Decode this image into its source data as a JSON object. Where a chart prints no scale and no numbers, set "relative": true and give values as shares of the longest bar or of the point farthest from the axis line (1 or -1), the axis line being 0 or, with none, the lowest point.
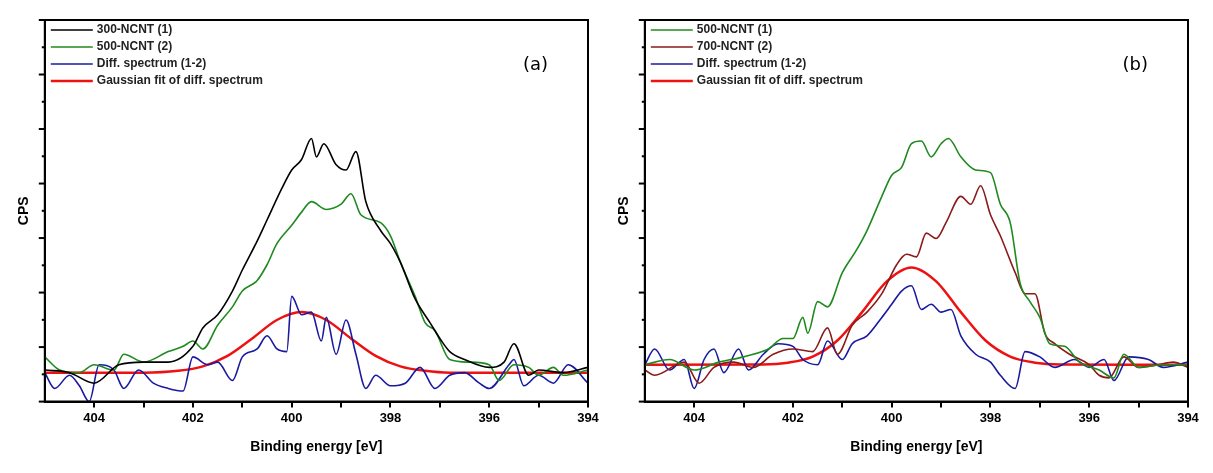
{
  "chart_data": [
    {
      "type": "line",
      "relative": true,
      "xlabel": "Binding energy [eV]",
      "ylabel": "CPS",
      "annotations": [
        "(a)"
      ],
      "legend": "top left",
      "marker": "none",
      "line_style": "solid",
      "grid": false,
      "tick_labels": "x",
      "xlim": [
        405,
        394
      ],
      "xticks": [
        404,
        {
          "value": 403,
          "label": null
        },
        402,
        {
          "value": 401,
          "label": null
        },
        400,
        {
          "value": 399,
          "label": null
        },
        398,
        {
          "value": 397,
          "label": null
        },
        396,
        {
          "value": 395,
          "label": null
        },
        394
      ],
      "series": [
        {
          "name": "300-NCNT (1)",
          "color": "#000000",
          "x": [
            405,
            404.5,
            404,
            403.5,
            403,
            402.5,
            402,
            401.8,
            401.5,
            401.2,
            401,
            400.7,
            400.5,
            400.2,
            400,
            399.8,
            399.6,
            399.5,
            399.35,
            399.1,
            398.9,
            398.7,
            398.5,
            398.2,
            398,
            397.8,
            397.5,
            397.2,
            397,
            396.8,
            396.5,
            396,
            395.7,
            395.5,
            395.2,
            395,
            394.5,
            394
          ],
          "values": [
            0.12,
            0.11,
            0.07,
            0.14,
            0.15,
            0.15,
            0.21,
            0.28,
            0.33,
            0.42,
            0.5,
            0.61,
            0.69,
            0.81,
            0.88,
            0.92,
            1.0,
            0.93,
            0.98,
            0.9,
            0.88,
            0.95,
            0.76,
            0.65,
            0.6,
            0.53,
            0.39,
            0.3,
            0.24,
            0.19,
            0.16,
            0.13,
            0.15,
            0.22,
            0.1,
            0.12,
            0.11,
            0.13
          ]
        },
        {
          "name": "500-NCNT (2)",
          "color": "#1f8a1f",
          "x": [
            405,
            404.7,
            404.3,
            404,
            403.6,
            403.4,
            403,
            402.5,
            402.2,
            402,
            401.8,
            401.5,
            401.2,
            401,
            400.7,
            400.5,
            400.3,
            400,
            399.8,
            399.6,
            399.3,
            399,
            398.8,
            398.6,
            398.2,
            398,
            397.8,
            397.5,
            397.3,
            397.1,
            396.8,
            396.4,
            396,
            395.8,
            395.5,
            395.2,
            395,
            394.7,
            394.5,
            394
          ],
          "values": [
            0.17,
            0.12,
            0.11,
            0.14,
            0.12,
            0.18,
            0.15,
            0.19,
            0.21,
            0.23,
            0.2,
            0.29,
            0.36,
            0.42,
            0.46,
            0.52,
            0.6,
            0.67,
            0.72,
            0.76,
            0.73,
            0.75,
            0.79,
            0.71,
            0.68,
            0.63,
            0.53,
            0.4,
            0.3,
            0.27,
            0.16,
            0.15,
            0.14,
            0.08,
            0.14,
            0.13,
            0.1,
            0.13,
            0.1,
            0.12
          ]
        },
        {
          "name": "Diff. spectrum (1-2)",
          "color": "#1a1aa0",
          "x": [
            405,
            404.8,
            404.5,
            404.3,
            404.1,
            403.9,
            403.6,
            403.4,
            403.1,
            402.8,
            402.5,
            402.2,
            402,
            401.7,
            401.5,
            401.2,
            401,
            400.7,
            400.5,
            400.3,
            400.1,
            400,
            399.8,
            399.6,
            399.4,
            399.3,
            399.1,
            398.9,
            398.7,
            398.5,
            398.3,
            398,
            397.7,
            397.4,
            397.1,
            396.8,
            396.5,
            396.2,
            396,
            395.6,
            395.5,
            395.3,
            395,
            394.7,
            394.4,
            394
          ],
          "values": [
            0.11,
            0.05,
            0.1,
            0.06,
            0.0,
            0.14,
            0.12,
            0.05,
            0.12,
            0.07,
            0.05,
            0.04,
            0.17,
            0.14,
            0.15,
            0.08,
            0.17,
            0.2,
            0.25,
            0.2,
            0.19,
            0.4,
            0.33,
            0.34,
            0.23,
            0.32,
            0.18,
            0.31,
            0.18,
            0.05,
            0.1,
            0.06,
            0.07,
            0.13,
            0.05,
            0.1,
            0.11,
            0.07,
            0.05,
            0.14,
            0.16,
            0.06,
            0.1,
            0.07,
            0.14,
            0.07
          ]
        },
        {
          "name": "Gaussian fit of diff. spectrum",
          "color": "#ee1111",
          "x": [
            405,
            403,
            402.3,
            401.8,
            401.3,
            400.8,
            400.3,
            399.8,
            399.3,
            398.8,
            398.3,
            397.8,
            397.3,
            396.8,
            394
          ],
          "values": [
            0.11,
            0.11,
            0.117,
            0.134,
            0.174,
            0.24,
            0.31,
            0.34,
            0.31,
            0.24,
            0.174,
            0.134,
            0.117,
            0.11,
            0.11
          ]
        }
      ]
    },
    {
      "type": "line",
      "relative": true,
      "xlabel": "Binding energy [eV]",
      "ylabel": "CPS",
      "annotations": [
        "(b)"
      ],
      "legend": "top left",
      "marker": "none",
      "line_style": "solid",
      "grid": false,
      "tick_labels": "x",
      "xlim": [
        405,
        394
      ],
      "xticks": [
        404,
        {
          "value": 403,
          "label": null
        },
        402,
        {
          "value": 401,
          "label": null
        },
        400,
        {
          "value": 399,
          "label": null
        },
        398,
        {
          "value": 397,
          "label": null
        },
        396,
        {
          "value": 395,
          "label": null
        },
        394
      ],
      "series": [
        {
          "name": "500-NCNT (1)",
          "color": "#1f8a1f",
          "x": [
            405,
            404.5,
            404,
            403.5,
            403,
            402.5,
            402.2,
            402,
            401.8,
            401.7,
            401.5,
            401.3,
            401,
            400.7,
            400.5,
            400.2,
            400,
            399.8,
            399.6,
            399.4,
            399.2,
            399,
            398.85,
            398.6,
            398.3,
            398,
            397.8,
            397.6,
            397.4,
            397.2,
            397,
            396.8,
            396.5,
            396.2,
            395.8,
            395.5,
            395.3,
            395,
            394.5,
            394
          ],
          "values": [
            0.14,
            0.16,
            0.12,
            0.15,
            0.17,
            0.2,
            0.24,
            0.24,
            0.32,
            0.26,
            0.38,
            0.36,
            0.49,
            0.58,
            0.65,
            0.78,
            0.86,
            0.89,
            0.98,
            0.99,
            0.93,
            0.98,
            1.0,
            0.93,
            0.88,
            0.87,
            0.75,
            0.68,
            0.45,
            0.38,
            0.32,
            0.22,
            0.21,
            0.15,
            0.12,
            0.09,
            0.18,
            0.13,
            0.14,
            0.14
          ]
        },
        {
          "name": "700-NCNT (2)",
          "color": "#8b1a1a",
          "x": [
            405,
            404.8,
            404.2,
            403.9,
            403.6,
            403.2,
            402.8,
            402.4,
            402,
            401.6,
            401.3,
            401.1,
            400.8,
            400.5,
            400.2,
            399.9,
            399.7,
            399.5,
            399.3,
            399.1,
            398.9,
            398.6,
            398.4,
            398.2,
            398,
            397.8,
            397.5,
            397.3,
            397.1,
            396.9,
            396.7,
            396.4,
            396,
            395.8,
            395.6,
            395.3,
            395,
            394.6,
            394.3,
            394
          ],
          "values": [
            0.12,
            0.1,
            0.15,
            0.07,
            0.13,
            0.15,
            0.13,
            0.18,
            0.2,
            0.19,
            0.28,
            0.18,
            0.29,
            0.34,
            0.41,
            0.52,
            0.56,
            0.55,
            0.64,
            0.62,
            0.68,
            0.78,
            0.75,
            0.82,
            0.71,
            0.63,
            0.49,
            0.41,
            0.41,
            0.26,
            0.22,
            0.18,
            0.14,
            0.1,
            0.09,
            0.17,
            0.13,
            0.14,
            0.15,
            0.13
          ]
        },
        {
          "name": "Diff. spectrum (1-2)",
          "color": "#1a1aa0",
          "x": [
            405,
            404.8,
            404.5,
            404.2,
            404,
            403.8,
            403.6,
            403.4,
            403.1,
            402.9,
            402.6,
            402.3,
            402,
            401.8,
            401.5,
            401.3,
            401,
            400.8,
            400.5,
            400.2,
            400,
            399.8,
            399.6,
            399.4,
            399.2,
            399,
            398.8,
            398.6,
            398.3,
            398,
            397.8,
            397.5,
            397.3,
            397,
            396.7,
            396.3,
            396,
            395.7,
            395.5,
            395.2,
            394.8,
            394.5,
            394
          ],
          "values": [
            0.14,
            0.2,
            0.12,
            0.16,
            0.05,
            0.16,
            0.2,
            0.11,
            0.2,
            0.12,
            0.18,
            0.22,
            0.21,
            0.16,
            0.14,
            0.23,
            0.16,
            0.22,
            0.25,
            0.32,
            0.37,
            0.42,
            0.44,
            0.35,
            0.37,
            0.34,
            0.35,
            0.25,
            0.18,
            0.15,
            0.1,
            0.05,
            0.19,
            0.17,
            0.13,
            0.16,
            0.13,
            0.16,
            0.08,
            0.17,
            0.16,
            0.13,
            0.15
          ]
        },
        {
          "name": "Gaussian fit of diff. spectrum",
          "color": "#ee1111",
          "x": [
            405,
            402.6,
            402.1,
            401.6,
            401.1,
            400.6,
            400.1,
            399.6,
            399.1,
            398.6,
            398.1,
            397.6,
            397.1,
            396.6,
            394
          ],
          "values": [
            0.14,
            0.141,
            0.148,
            0.171,
            0.232,
            0.34,
            0.457,
            0.51,
            0.457,
            0.34,
            0.232,
            0.171,
            0.148,
            0.141,
            0.14
          ]
        }
      ]
    }
  ]
}
